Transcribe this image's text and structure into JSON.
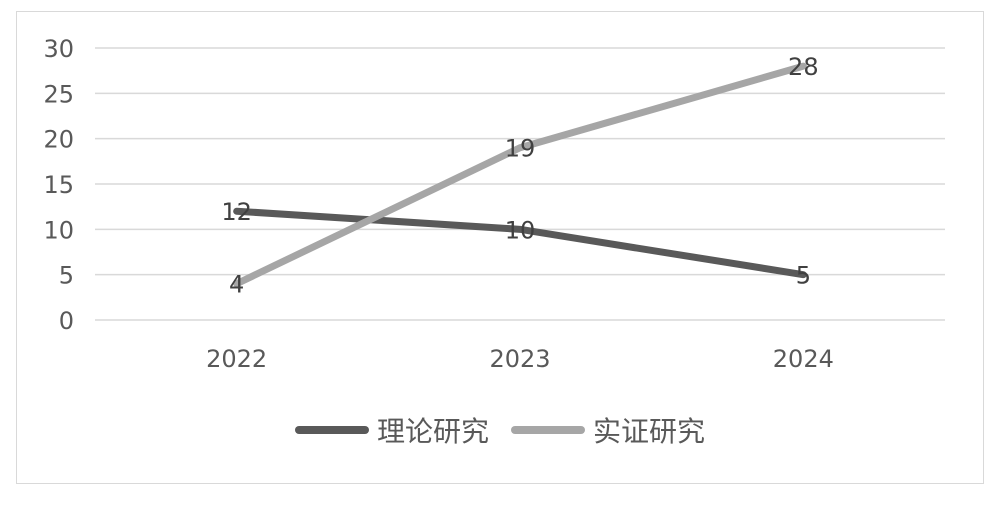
{
  "chart_data": {
    "type": "line",
    "categories": [
      "2022",
      "2023",
      "2024"
    ],
    "y_ticks": [
      "0",
      "5",
      "10",
      "15",
      "20",
      "25",
      "30"
    ],
    "ylim": [
      0,
      30
    ],
    "grid": true,
    "legend_position": "bottom",
    "series": [
      {
        "name": "理论研究",
        "values": [
          12,
          10,
          5
        ],
        "labels": [
          "12",
          "10",
          "5"
        ],
        "color": "#595959"
      },
      {
        "name": "实证研究",
        "values": [
          4,
          19,
          28
        ],
        "labels": [
          "4",
          "19",
          "28"
        ],
        "color": "#a6a6a6"
      }
    ]
  }
}
